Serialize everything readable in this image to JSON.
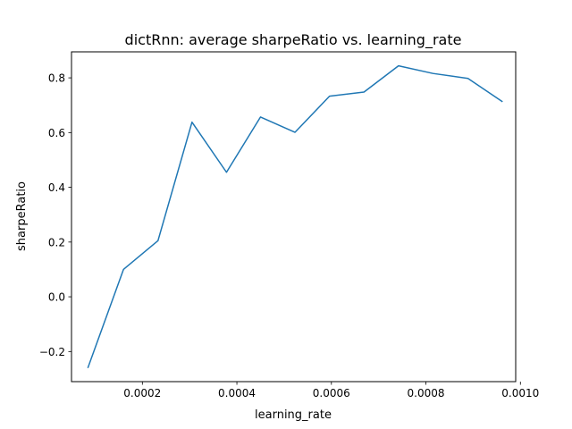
{
  "chart_data": {
    "type": "line",
    "title": "dictRnn: average sharpeRatio vs. learning_rate",
    "xlabel": "learning_rate",
    "ylabel": "sharpeRatio",
    "xlim": [
      5e-05,
      0.00099
    ],
    "ylim": [
      -0.31,
      0.895
    ],
    "x_ticks": [
      0.0002,
      0.0004,
      0.0006,
      0.0008,
      0.001
    ],
    "x_tick_labels": [
      "0.0002",
      "0.0004",
      "0.0006",
      "0.0008",
      "0.0010"
    ],
    "y_ticks": [
      -0.2,
      0.0,
      0.2,
      0.4,
      0.6,
      0.8
    ],
    "y_tick_labels": [
      "−0.2",
      "0.0",
      "0.2",
      "0.4",
      "0.6",
      "0.8"
    ],
    "grid": false,
    "series": [
      {
        "color": "#1f77b4",
        "x": [
          8.5e-05,
          0.00016,
          0.000233,
          0.000305,
          0.000378,
          0.00045,
          0.000523,
          0.000596,
          0.000669,
          0.000742,
          0.000815,
          0.000889,
          0.000961
        ],
        "y": [
          -0.258,
          0.1,
          0.205,
          0.638,
          0.455,
          0.657,
          0.601,
          0.733,
          0.748,
          0.844,
          0.816,
          0.798,
          0.714
        ]
      }
    ]
  }
}
